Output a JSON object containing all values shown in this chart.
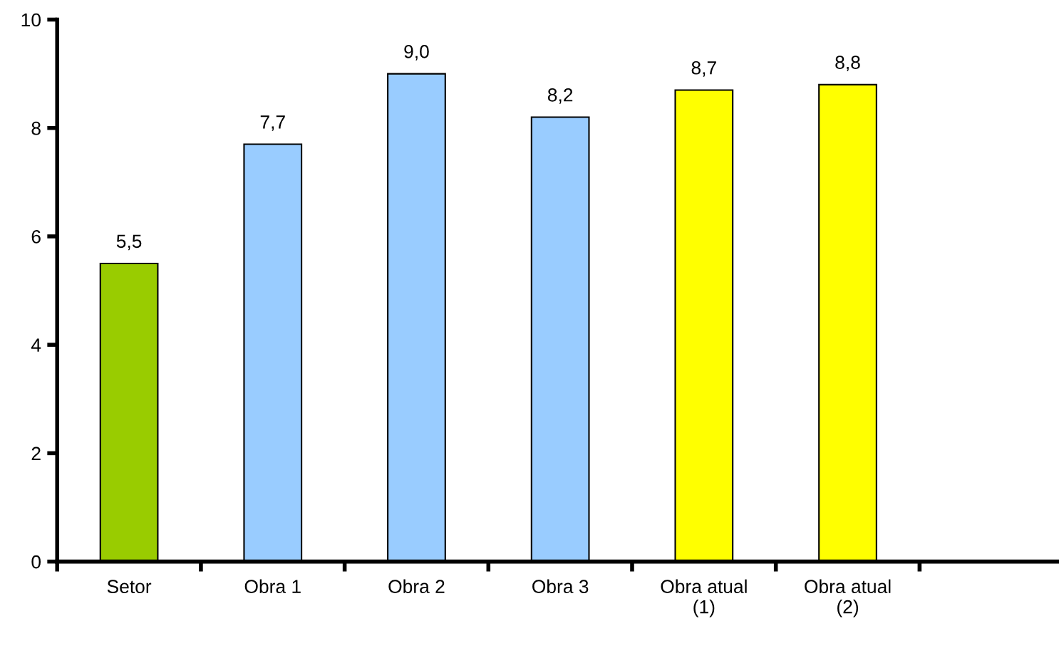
{
  "chart_data": {
    "type": "bar",
    "categories": [
      "Setor",
      "Obra 1",
      "Obra 2",
      "Obra 3",
      "Obra atual\n(1)",
      "Obra atual\n(2)"
    ],
    "values": [
      5.5,
      7.7,
      9.0,
      8.2,
      8.7,
      8.8
    ],
    "colors": [
      "#99cc00",
      "#99ccff",
      "#99ccff",
      "#99ccff",
      "#ffff00",
      "#ffff00"
    ],
    "value_labels": [
      "5,5",
      "7,7",
      "9,0",
      "8,2",
      "8,7",
      "8,8"
    ],
    "ylim": [
      0,
      10
    ],
    "yticks": [
      0,
      2,
      4,
      6,
      8,
      10
    ],
    "grid": false,
    "legend": false
  }
}
